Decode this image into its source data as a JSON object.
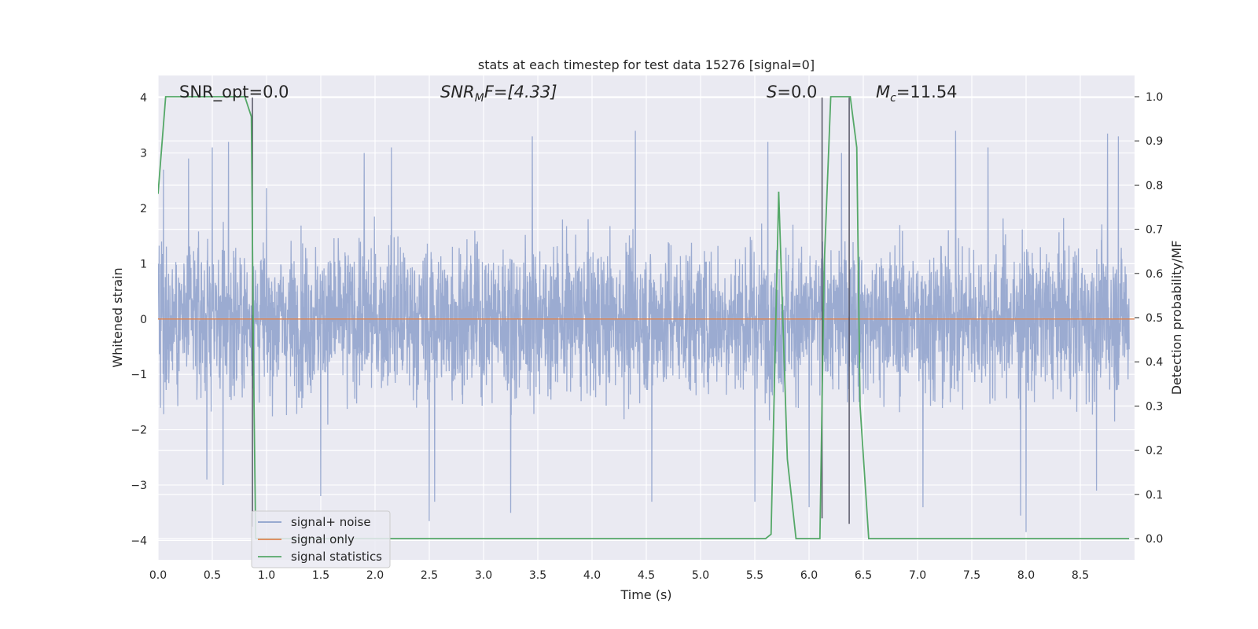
{
  "chart_data": {
    "type": "line",
    "title": "stats at each timestep for test data 15276 [signal=0]",
    "xlabel": "Time (s)",
    "ylabel": "Whitened strain",
    "ylabel_right": "Detection probability/MF",
    "xlim": [
      0.0,
      9.0
    ],
    "ylim": [
      -4.35,
      4.4
    ],
    "ylim_right": [
      -0.048,
      1.048
    ],
    "x_ticks": [
      "0.0",
      "0.5",
      "1.0",
      "1.5",
      "2.0",
      "2.5",
      "3.0",
      "3.5",
      "4.0",
      "4.5",
      "5.0",
      "5.5",
      "6.0",
      "6.5",
      "7.0",
      "7.5",
      "8.0",
      "8.5"
    ],
    "y_ticks": [
      "−4",
      "−3",
      "−2",
      "−1",
      "0",
      "1",
      "2",
      "3",
      "4"
    ],
    "y_ticks_right": [
      "0.0",
      "0.1",
      "0.2",
      "0.3",
      "0.4",
      "0.5",
      "0.6",
      "0.7",
      "0.8",
      "0.9",
      "1.0"
    ],
    "grid": true,
    "annotations": {
      "snr_opt": "SNR_opt=0.0",
      "snr_mf_sym": "SNR",
      "snr_mf_sub": "M",
      "snr_mf_rest": "F=[4.33]",
      "s_sym": "S",
      "s_rest": "=0.0",
      "mc_sym": "M",
      "mc_sub": "c",
      "mc_rest": "=11.54"
    },
    "legend": {
      "placement": "lower-left",
      "entries": [
        {
          "label": "signal+ noise",
          "color": "#8da0cb"
        },
        {
          "label": "signal only",
          "color": "#dd8452"
        },
        {
          "label": "signal statistics",
          "color": "#55a868"
        }
      ]
    },
    "series": [
      {
        "name": "signal+ noise",
        "axis": "left",
        "color": "#8da0cb",
        "description_values": "dense noise, approx sample rate 2048/s",
        "envelope_peaks_top": [
          [
            0.05,
            2.7
          ],
          [
            0.28,
            2.9
          ],
          [
            0.5,
            3.1
          ],
          [
            0.65,
            3.2
          ],
          [
            1.9,
            3.0
          ],
          [
            2.15,
            3.1
          ],
          [
            3.45,
            3.3
          ],
          [
            4.4,
            3.4
          ],
          [
            5.5,
            3.6
          ],
          [
            5.62,
            3.2
          ],
          [
            6.3,
            3.0
          ],
          [
            7.35,
            3.4
          ],
          [
            7.65,
            3.1
          ],
          [
            8.75,
            3.35
          ],
          [
            8.85,
            3.3
          ]
        ],
        "envelope_peaks_bottom": [
          [
            0.45,
            -2.9
          ],
          [
            0.6,
            -3.0
          ],
          [
            1.5,
            -3.2
          ],
          [
            2.5,
            -3.65
          ],
          [
            2.55,
            -3.3
          ],
          [
            3.25,
            -3.5
          ],
          [
            4.55,
            -3.3
          ],
          [
            5.5,
            -3.3
          ],
          [
            6.0,
            -3.4
          ],
          [
            7.05,
            -3.4
          ],
          [
            7.95,
            -3.55
          ],
          [
            8.0,
            -3.85
          ],
          [
            8.65,
            -3.1
          ]
        ]
      },
      {
        "name": "signal only",
        "axis": "left",
        "color": "#dd8452",
        "x": [
          0.0,
          9.0
        ],
        "y": [
          0.0,
          0.0
        ]
      },
      {
        "name": "signal statistics",
        "axis": "right",
        "color": "#55a868",
        "x": [
          0.0,
          0.07,
          0.1,
          0.2,
          0.8,
          0.86,
          0.88,
          0.9,
          0.95,
          5.6,
          5.65,
          5.72,
          5.8,
          5.88,
          6.1,
          6.14,
          6.2,
          6.35,
          6.38,
          6.44,
          6.47,
          6.55,
          8.95
        ],
        "y": [
          0.78,
          1.0,
          1.0,
          1.0,
          1.0,
          0.955,
          0.4,
          0.0,
          0.0,
          0.0,
          0.01,
          0.785,
          0.18,
          0.0,
          0.0,
          0.62,
          1.0,
          1.0,
          1.0,
          0.885,
          0.3,
          0.0,
          0.0
        ]
      }
    ],
    "vertical_lines": [
      {
        "x": 0.87,
        "y_top": 4.0,
        "y_bottom": -3.75
      },
      {
        "x": 6.12,
        "y_top": 4.0,
        "y_bottom": -3.6
      },
      {
        "x": 6.37,
        "y_top": 4.0,
        "y_bottom": -3.7
      }
    ]
  }
}
